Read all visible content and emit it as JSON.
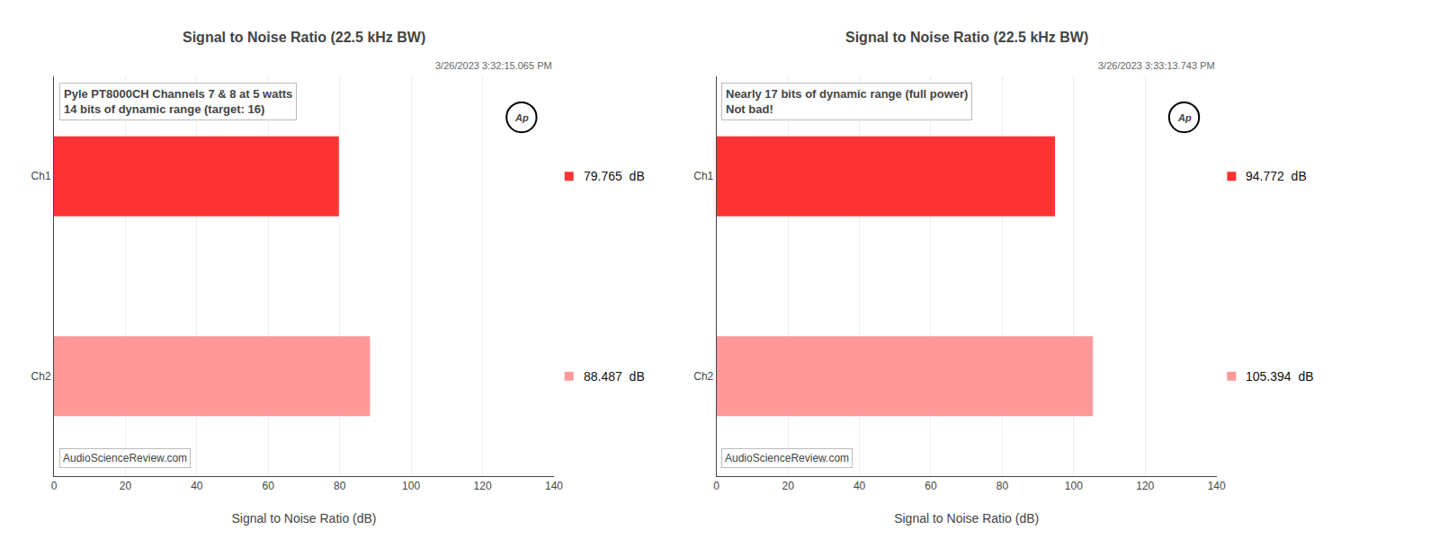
{
  "chart_data": [
    {
      "type": "bar",
      "orientation": "horizontal",
      "title": "Signal to Noise Ratio (22.5 kHz BW)",
      "subtitle": "3/26/2023 3:32:15.065 PM",
      "categories": [
        "Ch1",
        "Ch2"
      ],
      "values": [
        79.765,
        88.487
      ],
      "value_labels": [
        "79.765  dB",
        "88.487  dB"
      ],
      "data_labels": true,
      "colors": [
        "#FF3333",
        "#FF9999"
      ],
      "xlabel": "Signal to Noise Ratio (dB)",
      "xlim": [
        0,
        140
      ],
      "xticks": [
        0,
        20,
        40,
        60,
        80,
        100,
        120,
        140
      ],
      "grid": true,
      "annotations": [
        [
          "Pyle PT8000CH Channels 7 & 8 at 5 watts",
          "14 bits of dynamic range (target: 16)"
        ],
        [
          "AudioScienceReview.com"
        ],
        [
          "Ap"
        ]
      ]
    },
    {
      "type": "bar",
      "orientation": "horizontal",
      "title": "Signal to Noise Ratio (22.5 kHz BW)",
      "subtitle": "3/26/2023 3:33:13.743 PM",
      "categories": [
        "Ch1",
        "Ch2"
      ],
      "values": [
        94.772,
        105.394
      ],
      "value_labels": [
        "94.772  dB",
        "105.394  dB"
      ],
      "data_labels": true,
      "colors": [
        "#FF3333",
        "#FF9999"
      ],
      "xlabel": "Signal to Noise Ratio (dB)",
      "xlim": [
        0,
        140
      ],
      "xticks": [
        0,
        20,
        40,
        60,
        80,
        100,
        120,
        140
      ],
      "grid": true,
      "annotations": [
        [
          "Nearly 17 bits of dynamic range (full power)",
          "Not bad!"
        ],
        [
          "AudioScienceReview.com"
        ],
        [
          "Ap"
        ]
      ]
    }
  ]
}
